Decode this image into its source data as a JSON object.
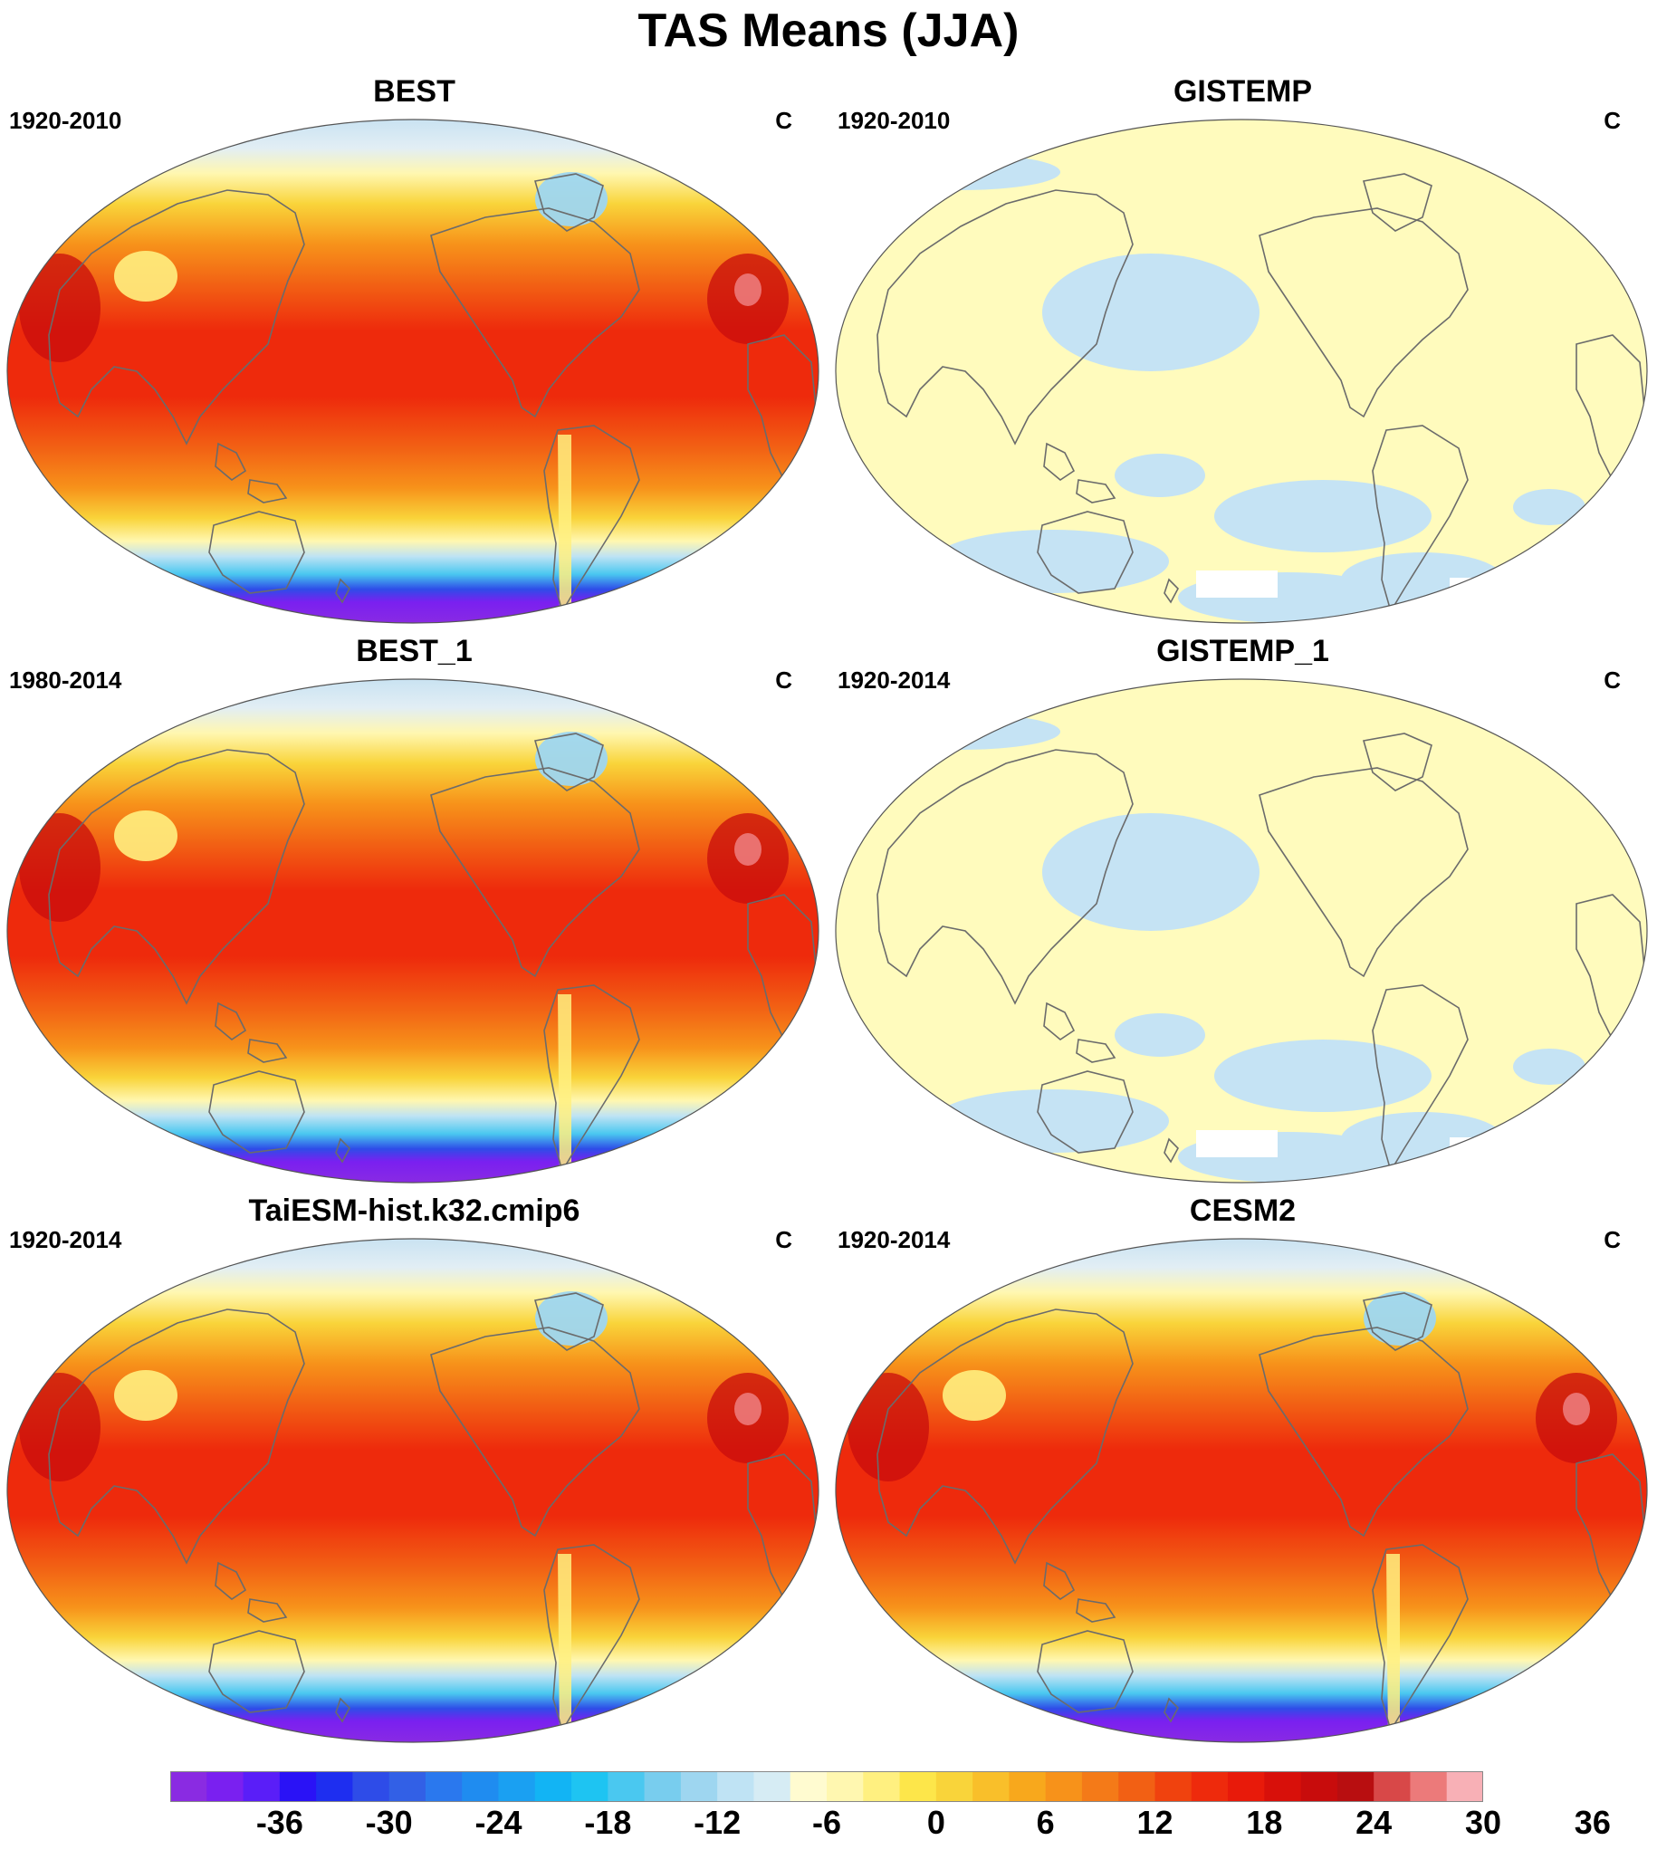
{
  "figure": {
    "title": "TAS Means (JJA)"
  },
  "panels": [
    {
      "name": "BEST",
      "period": "1920-2010",
      "units": "C",
      "style": "warm"
    },
    {
      "name": "GISTEMP",
      "period": "1920-2010",
      "units": "C",
      "style": "anomaly"
    },
    {
      "name": "BEST_1",
      "period": "1980-2014",
      "units": "C",
      "style": "warm"
    },
    {
      "name": "GISTEMP_1",
      "period": "1920-2014",
      "units": "C",
      "style": "anomaly"
    },
    {
      "name": "TaiESM-hist.k32.cmip6",
      "period": "1920-2014",
      "units": "C",
      "style": "warm"
    },
    {
      "name": "CESM2",
      "period": "1920-2014",
      "units": "C",
      "style": "warm"
    }
  ],
  "colorbar": {
    "tick_labels": [
      "-36",
      "-30",
      "-24",
      "-18",
      "-12",
      "-6",
      "0",
      "6",
      "12",
      "18",
      "24",
      "30",
      "36"
    ],
    "colors": [
      "#8a2be2",
      "#7a20f0",
      "#5a1ef8",
      "#2a12f6",
      "#1e2ef0",
      "#2e4ce8",
      "#3260e6",
      "#2a78ee",
      "#1f8cf0",
      "#1aa0f2",
      "#12b4f4",
      "#1ec4f2",
      "#4ac8f0",
      "#78cdee",
      "#9ed6f0",
      "#bfe3f4",
      "#d6ecf4",
      "#fffbd0",
      "#fff7b0",
      "#fff080",
      "#fde64a",
      "#f9d43a",
      "#f9bf2a",
      "#f8a81c",
      "#f7921a",
      "#f47a18",
      "#f26014",
      "#f0420e",
      "#ee2a0c",
      "#e81a0a",
      "#d8100a",
      "#c80c0c",
      "#b80e10",
      "#d84848",
      "#ec7a7a",
      "#f8b0b6"
    ]
  }
}
